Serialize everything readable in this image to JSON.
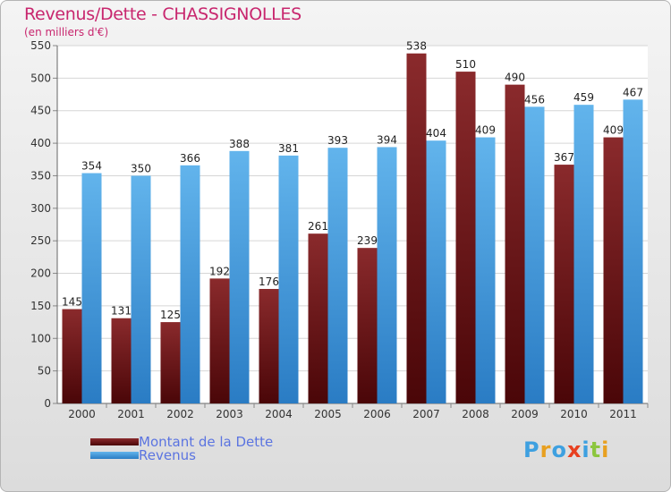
{
  "header": {
    "title": "Revenus/Dette - CHASSIGNOLLES",
    "subtitle": "(en milliers d'€)"
  },
  "legend": {
    "debt_label": "Montant de la Dette",
    "revenue_label": "Revenus"
  },
  "logo": {
    "letters": [
      "P",
      "r",
      "o",
      "x",
      "i",
      "t",
      "i"
    ],
    "colors": [
      "#3ea0e0",
      "#e8a020",
      "#3ea0e0",
      "#e84020",
      "#3ea0e0",
      "#8cc63e",
      "#e8a020"
    ]
  },
  "colors": {
    "debt": "#7a1a1c",
    "debt_dark": "#4a0608",
    "revenue": "#5aaee8",
    "revenue_dark": "#2a7cc4"
  },
  "chart_data": {
    "type": "bar",
    "title": "Revenus/Dette - CHASSIGNOLLES",
    "ylabel": "(en milliers d'€)",
    "xlabel": "",
    "categories": [
      "2000",
      "2001",
      "2002",
      "2003",
      "2004",
      "2005",
      "2006",
      "2007",
      "2008",
      "2009",
      "2010",
      "2011"
    ],
    "series": [
      {
        "name": "Montant de la Dette",
        "values": [
          145,
          131,
          125,
          192,
          176,
          261,
          239,
          538,
          510,
          490,
          367,
          409
        ]
      },
      {
        "name": "Revenus",
        "values": [
          354,
          350,
          366,
          388,
          381,
          393,
          394,
          404,
          409,
          456,
          459,
          467
        ]
      }
    ],
    "ylim": [
      0,
      550
    ],
    "yticks": [
      0,
      50,
      100,
      150,
      200,
      250,
      300,
      350,
      400,
      450,
      500,
      550
    ],
    "grid": true,
    "legend_position": "bottom-left"
  }
}
